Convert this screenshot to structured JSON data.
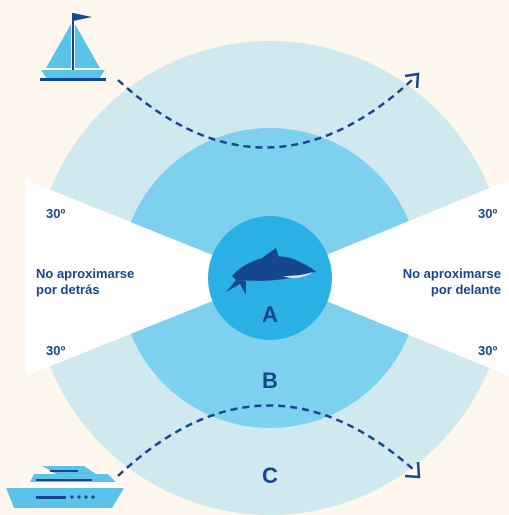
{
  "labels": {
    "angle_top_left": "30º",
    "angle_bottom_left": "30º",
    "angle_top_right": "30º",
    "angle_bottom_right": "30º",
    "behind_line1": "No aproximarse",
    "behind_line2": "por detrás",
    "front_line1": "No aproximarse",
    "front_line2": "por delante",
    "zone_a": "A",
    "zone_b": "B",
    "zone_c": "C"
  },
  "icons": {
    "top_left": "sailboat-icon",
    "center": "dolphin-icon",
    "bottom_left": "yacht-icon",
    "arrows": "dashed-curved-arrow-icon"
  },
  "colors": {
    "background": "#fdf7ee",
    "zone_c": "#cfe9ef",
    "zone_b": "#7dd0ee",
    "zone_a": "#2bb0e5",
    "navy": "#18468e",
    "wedge": "#ffffff"
  }
}
